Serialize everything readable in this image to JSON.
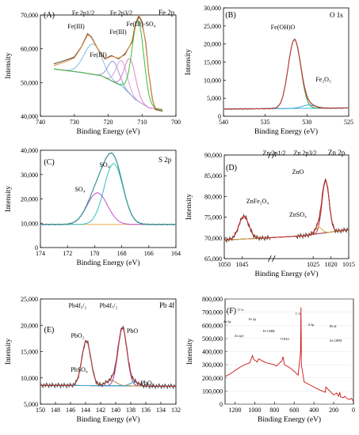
{
  "chart_data": [
    {
      "type": "line",
      "panel_letter": "(A)",
      "tag": "Fe 2p",
      "xlabel": "Binding Energy (eV)",
      "ylabel": "Intensity",
      "xlim": [
        740,
        700
      ],
      "ylim": [
        40000,
        70000
      ],
      "x_ticks": [
        740,
        730,
        720,
        710,
        700
      ],
      "y_ticks": [
        40000,
        50000,
        60000,
        70000
      ],
      "y_tick_labels": [
        "40,000",
        "50,000",
        "60,000",
        "70,000"
      ],
      "background": {
        "x": [
          736,
          728,
          722,
          716,
          712,
          708,
          704
        ],
        "y": [
          54000,
          53000,
          52000,
          49000,
          45000,
          42500,
          42000
        ]
      },
      "series": [
        {
          "role": "raw",
          "x": [
            736,
            733,
            730,
            728,
            726,
            725,
            723,
            721,
            719,
            717,
            715,
            713,
            712,
            711,
            710,
            709,
            708,
            707,
            706,
            704
          ],
          "y": [
            55500,
            56500,
            57500,
            60500,
            64500,
            63500,
            60000,
            57000,
            58000,
            57000,
            58500,
            62000,
            67000,
            69500,
            68000,
            62000,
            53000,
            45000,
            42000,
            41500
          ]
        },
        {
          "role": "fit",
          "x": [
            736,
            733,
            730,
            728,
            726,
            725,
            723,
            721,
            719,
            717,
            715,
            713,
            712,
            711,
            710,
            709,
            708,
            707,
            706,
            704
          ],
          "y": [
            55000,
            56000,
            57300,
            60300,
            64200,
            63400,
            59800,
            56900,
            57800,
            57200,
            58200,
            62200,
            67500,
            70000,
            68200,
            62000,
            52500,
            45000,
            42200,
            41800
          ]
        },
        {
          "role": "component",
          "center": 724.5,
          "height": 9000,
          "width": 2.6
        },
        {
          "role": "component",
          "center": 718.5,
          "height": 6000,
          "width": 1.6
        },
        {
          "role": "component",
          "center": 716.0,
          "height": 7500,
          "width": 1.6
        },
        {
          "role": "component",
          "center": 713.5,
          "height": 10500,
          "width": 1.6
        },
        {
          "role": "component",
          "center": 711.2,
          "height": 24000,
          "width": 1.7
        }
      ],
      "annotations": [
        "Fe 2p1/2",
        "Fe 2p3/2",
        "Fe(III)",
        "Fe(III)",
        "Fe(III)",
        "Fe(III)-SO₄"
      ]
    },
    {
      "type": "line",
      "panel_letter": "(B)",
      "tag": "O 1s",
      "xlabel": "Binding Energy (eV)",
      "ylabel": "Intensity",
      "xlim": [
        540,
        525
      ],
      "ylim": [
        0,
        30000
      ],
      "x_ticks": [
        540,
        535,
        530,
        525
      ],
      "y_ticks": [
        0,
        5000,
        10000,
        15000,
        20000,
        25000,
        30000
      ],
      "y_tick_labels": [
        "0",
        "5,000",
        "10,000",
        "15,000",
        "20,000",
        "25,000",
        "30,000"
      ],
      "background": {
        "x": [
          540,
          525
        ],
        "y": [
          2000,
          2300
        ]
      },
      "series": [
        {
          "role": "peak",
          "center": 531.5,
          "height": 19000,
          "width": 0.75
        },
        {
          "role": "peak",
          "center": 529.8,
          "height": 900,
          "width": 0.8
        }
      ],
      "annotations": [
        "Fe(OH)O",
        "Fe₂O₃"
      ]
    },
    {
      "type": "line",
      "panel_letter": "(C)",
      "tag": "S 2p",
      "xlabel": "Binding Energy (eV)",
      "ylabel": "Intensity",
      "xlim": [
        174,
        164
      ],
      "ylim": [
        0,
        40000
      ],
      "x_ticks": [
        174,
        172,
        170,
        168,
        166,
        164
      ],
      "y_ticks": [
        0,
        10000,
        20000,
        30000,
        40000
      ],
      "y_tick_labels": [
        "0",
        "10,000",
        "20,000",
        "30,000",
        "40,000"
      ],
      "background": {
        "x": [
          174,
          164
        ],
        "y": [
          9500,
          9500
        ]
      },
      "series": [
        {
          "role": "peak",
          "center": 168.6,
          "height": 25000,
          "width": 0.7
        },
        {
          "role": "peak",
          "center": 169.8,
          "height": 13000,
          "width": 0.75
        }
      ],
      "annotations": [
        "SO₄",
        "SO₄"
      ]
    },
    {
      "type": "line",
      "panel_letter": "(D)",
      "tag": "Zn 2p",
      "xlabel": "Binding Energy (eV)",
      "ylabel": "Intensity",
      "xlim": [
        1050,
        1015
      ],
      "x_ticks": [
        1050,
        1045,
        1025,
        1020,
        1015
      ],
      "ylim": [
        65000,
        90000
      ],
      "y_ticks": [
        65000,
        70000,
        75000,
        80000,
        85000,
        90000
      ],
      "y_tick_labels": [
        "65,000",
        "70,000",
        "75,000",
        "80,000",
        "85,000",
        "90,000"
      ],
      "background": {
        "x": [
          1050,
          1038,
          1028,
          1015
        ],
        "y": [
          69500,
          70000,
          70500,
          72000
        ]
      },
      "series": [
        {
          "role": "peak",
          "center": 1044.5,
          "height": 5500,
          "width": 1.4
        },
        {
          "role": "peak",
          "center": 1021.5,
          "height": 12500,
          "width": 1.0
        },
        {
          "role": "peak",
          "center": 1023.5,
          "height": 1500,
          "width": 1.0
        }
      ],
      "annotations": [
        "Zn 2p1/2",
        "Zn 2p3/2",
        "ZnFe₂O₄",
        "ZnO",
        "ZnSO₄"
      ]
    },
    {
      "type": "line",
      "panel_letter": "(E)",
      "tag": "Pb 4f",
      "xlabel": "Binding Energy (eV)",
      "ylabel": "Intensity",
      "xlim": [
        150,
        132
      ],
      "ylim": [
        5000,
        25000
      ],
      "x_ticks": [
        150,
        148,
        146,
        144,
        142,
        140,
        138,
        136,
        134,
        132
      ],
      "y_ticks": [
        5000,
        10000,
        15000,
        20000,
        25000
      ],
      "y_tick_labels": [
        "5,000",
        "10,000",
        "15,000",
        "20,000",
        "25,000"
      ],
      "background": {
        "x": [
          150,
          132
        ],
        "y": [
          8600,
          8400
        ]
      },
      "series": [
        {
          "role": "peak",
          "center": 143.9,
          "height": 8500,
          "width": 0.6
        },
        {
          "role": "peak",
          "center": 139.1,
          "height": 11000,
          "width": 0.6
        },
        {
          "role": "peak",
          "center": 140.6,
          "height": 1000,
          "width": 0.7
        },
        {
          "role": "peak",
          "center": 137.5,
          "height": 700,
          "width": 0.6
        }
      ],
      "annotations": [
        "Pb4f₅/₂",
        "Pb4f₇/₂",
        "PbO₂",
        "PbSO₄",
        "PbO",
        "PbO₂"
      ]
    },
    {
      "type": "line",
      "panel_letter": "(F)",
      "tag": "",
      "xlabel": "Binding Energy (eV)",
      "ylabel": "Intensity",
      "xlim": [
        1300,
        0
      ],
      "ylim": [
        0,
        800000
      ],
      "x_ticks": [
        1200,
        1000,
        800,
        600,
        400,
        200,
        0
      ],
      "y_ticks": [
        0,
        100000,
        200000,
        300000,
        400000,
        500000,
        600000,
        700000,
        800000
      ],
      "y_tick_labels": [
        "0",
        "100,000",
        "200,000",
        "300,000",
        "400,000",
        "500,000",
        "600,000",
        "700,000",
        "800,000"
      ],
      "series": [
        {
          "role": "survey",
          "x": [
            1300,
            1250,
            1200,
            1150,
            1100,
            1050,
            1022,
            1010,
            990,
            975,
            960,
            900,
            860,
            800,
            780,
            725,
            712,
            700,
            650,
            600,
            560,
            535,
            531,
            527,
            500,
            450,
            400,
            350,
            285,
            280,
            200,
            169,
            150,
            139,
            130,
            100,
            90,
            60,
            40,
            20,
            0
          ],
          "y": [
            210000,
            230000,
            255000,
            280000,
            300000,
            315000,
            370000,
            340000,
            330000,
            320000,
            345000,
            320000,
            310000,
            300000,
            290000,
            330000,
            360000,
            300000,
            280000,
            250000,
            220000,
            400000,
            735000,
            300000,
            170000,
            150000,
            130000,
            110000,
            90000,
            130000,
            70000,
            85000,
            60000,
            90000,
            55000,
            50000,
            60000,
            40000,
            35000,
            45000,
            20000
          ]
        }
      ],
      "peak_labels": [
        "O 1s",
        "Zn 2p",
        "Zn 2p1",
        "Fe 2p",
        "Fe LMM",
        "O KLL",
        "C 1s",
        "S 2p",
        "Pb 4f",
        "Zn LMM"
      ]
    }
  ]
}
